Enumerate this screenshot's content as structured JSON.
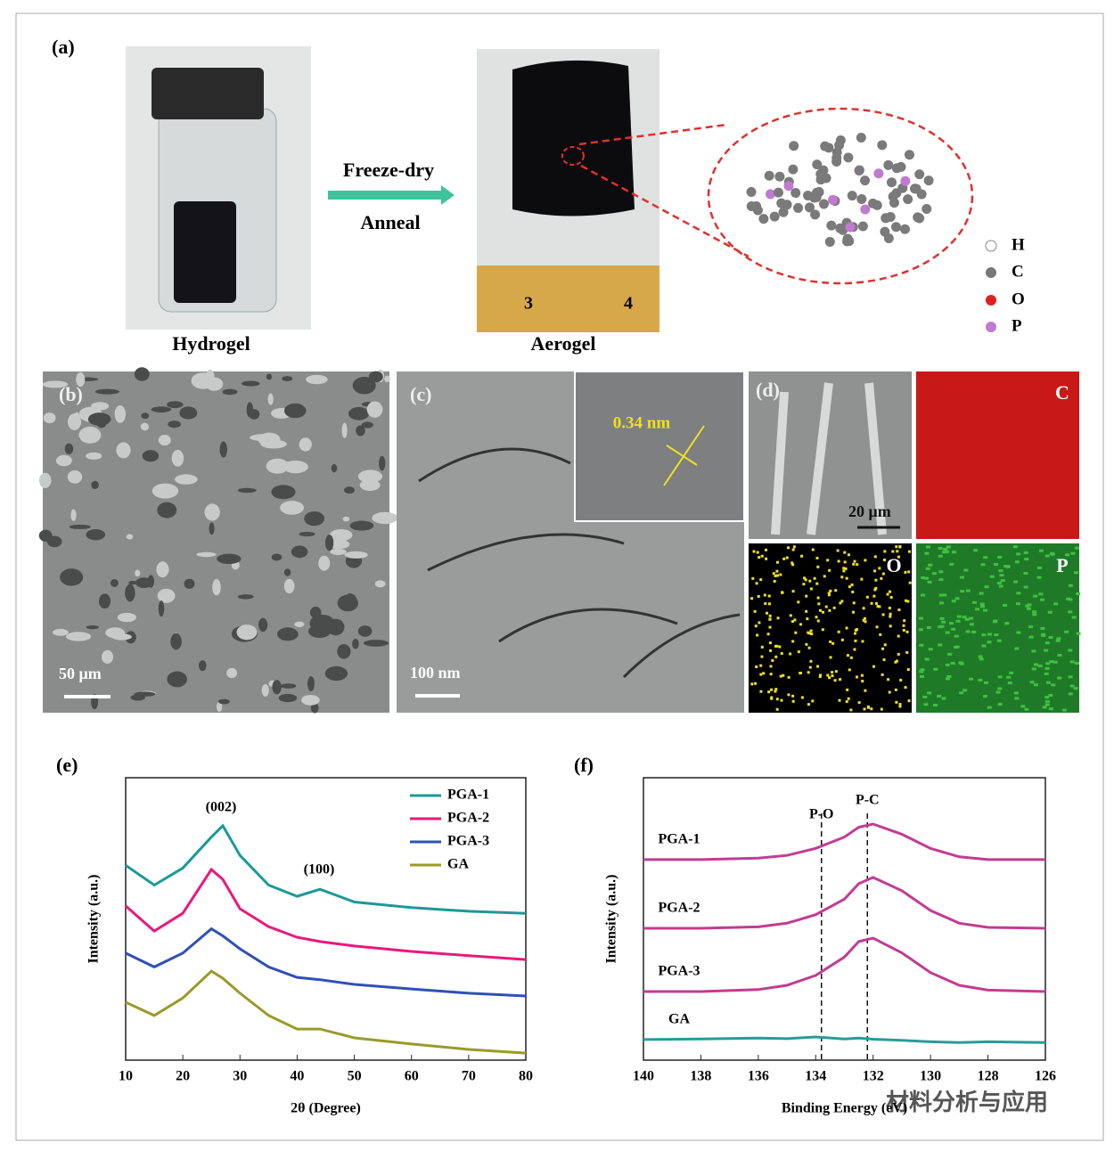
{
  "panels": {
    "a": {
      "label": "(a)",
      "arrow_top": "Freeze-dry",
      "arrow_bottom": "Anneal",
      "left_caption": "Hydrogel",
      "right_caption": "Aerogel",
      "ruler": [
        "3",
        "4"
      ],
      "legend": [
        "H",
        "C",
        "O",
        "P"
      ]
    },
    "b": {
      "label": "(b)",
      "scale": "50 μm"
    },
    "c": {
      "label": "(c)",
      "scale": "100 nm",
      "inset": "0.34 nm"
    },
    "d": {
      "label": "(d)",
      "scale": "20 μm",
      "maps": [
        "C",
        "O",
        "P"
      ]
    }
  },
  "chart_data": [
    {
      "type": "line",
      "label": "(e)",
      "xlabel": "2θ (Degree)",
      "ylabel": "Intensity (a.u.)",
      "x": [
        10,
        15,
        20,
        25,
        27,
        30,
        35,
        40,
        44,
        50,
        60,
        70,
        80
      ],
      "xlim": [
        10,
        80
      ],
      "xticks": [
        10,
        20,
        30,
        40,
        50,
        60,
        70,
        80
      ],
      "ylim": [
        0,
        100
      ],
      "legend": "upper right",
      "annotations": [
        "(002)",
        "(100)"
      ],
      "series": [
        {
          "name": "PGA-1",
          "color": "#1a9a98",
          "values": [
            69,
            62,
            68,
            79,
            83,
            72.5,
            62,
            58,
            60.5,
            56,
            54,
            52.7,
            52
          ]
        },
        {
          "name": "PGA-2",
          "color": "#e8197c",
          "values": [
            54.6,
            45.7,
            52,
            67.5,
            64,
            53.6,
            47.3,
            43.5,
            42,
            40.4,
            38.5,
            37,
            35.6
          ]
        },
        {
          "name": "PGA-3",
          "color": "#3050b4",
          "values": [
            37.9,
            33,
            37.9,
            46.5,
            44,
            39.4,
            33,
            29.3,
            28.5,
            26.8,
            25.2,
            23.7,
            22.7
          ]
        },
        {
          "name": "GA",
          "color": "#9a9a2a",
          "values": [
            20.5,
            15.8,
            22,
            31.5,
            29,
            23.7,
            15.8,
            11,
            11,
            7.9,
            5.7,
            3.8,
            2.5
          ]
        }
      ]
    },
    {
      "type": "line",
      "label": "(f)",
      "xlabel": "Binding Energy (eV)",
      "ylabel": "Intensity (a.u.)",
      "x": [
        140,
        138,
        136,
        135,
        134,
        133,
        132.5,
        132,
        131,
        130,
        129,
        128,
        126
      ],
      "xlim": [
        140,
        126
      ],
      "xticks": [
        140,
        138,
        136,
        134,
        132,
        130,
        128,
        126
      ],
      "ylim": [
        0,
        100
      ],
      "reference_lines": [
        {
          "label": "P-O",
          "x": 133.8
        },
        {
          "label": "P-C",
          "x": 132.2
        }
      ],
      "series": [
        {
          "name": "PGA-1",
          "color": "#c23c92",
          "values": [
            71,
            71,
            71.5,
            72.5,
            75,
            79,
            82.5,
            83.6,
            80,
            75,
            72,
            71,
            71
          ]
        },
        {
          "name": "PGA-2",
          "color": "#c23c92",
          "values": [
            46.7,
            46.7,
            47.2,
            48.5,
            51.5,
            57,
            62.5,
            64.7,
            60,
            53,
            48.5,
            47,
            46.7
          ]
        },
        {
          "name": "PGA-3",
          "color": "#c23c92",
          "values": [
            24.3,
            24.3,
            25,
            26.5,
            30,
            36.5,
            42,
            43.2,
            38,
            31,
            26.5,
            24.8,
            24.3
          ]
        },
        {
          "name": "GA",
          "color": "#2a9a9a",
          "values": [
            7.3,
            7.5,
            7.8,
            7.6,
            8.2,
            7.5,
            7.8,
            7.4,
            7,
            6.5,
            6.2,
            6.5,
            6.2
          ]
        }
      ]
    }
  ],
  "watermark": "材料分析与应用"
}
